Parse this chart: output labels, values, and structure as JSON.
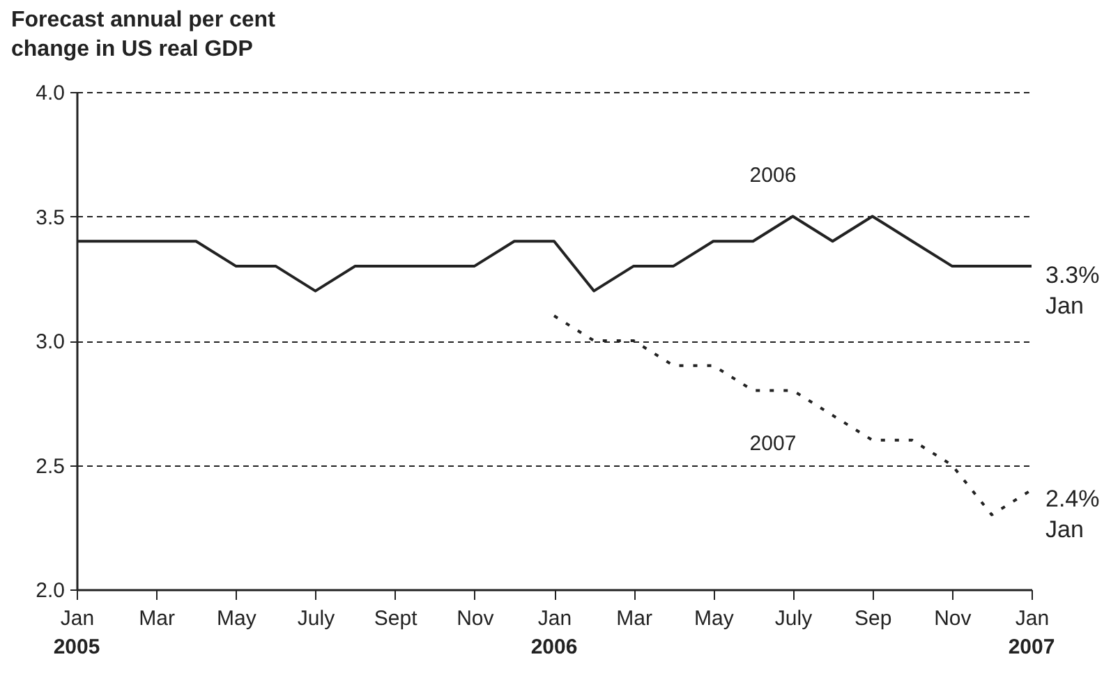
{
  "chart_data": {
    "type": "line",
    "title": "Forecast annual per cent change in US real GDP",
    "categories": [
      "Jan",
      null,
      "Mar",
      null,
      "May",
      null,
      "July",
      null,
      "Sept",
      null,
      "Nov",
      null,
      "Jan",
      null,
      "Mar",
      null,
      "May",
      null,
      "July",
      null,
      "Sep",
      null,
      "Nov",
      null,
      "Jan"
    ],
    "series": [
      {
        "name": "2006",
        "color": "#222222",
        "line_style": "solid",
        "values": [
          3.4,
          3.4,
          3.4,
          3.4,
          3.3,
          3.3,
          3.2,
          3.3,
          3.3,
          3.3,
          3.3,
          3.4,
          3.4,
          3.2,
          3.3,
          3.3,
          3.4,
          3.4,
          3.5,
          3.4,
          3.5,
          3.4,
          3.3,
          3.3,
          3.3
        ]
      },
      {
        "name": "2007",
        "color": "#222222",
        "line_style": "dotted",
        "values": [
          null,
          null,
          null,
          null,
          null,
          null,
          null,
          null,
          null,
          null,
          null,
          null,
          3.1,
          3.0,
          3.0,
          2.9,
          2.9,
          2.8,
          2.8,
          2.7,
          2.6,
          2.6,
          2.5,
          2.3,
          2.4
        ]
      }
    ],
    "ylim": [
      2.0,
      4.0
    ],
    "yticks": [
      {
        "value": 2,
        "label": "2.0"
      },
      2.5,
      {
        "value": 3,
        "label": "3.0"
      },
      3.5,
      {
        "value": 4,
        "label": "4.0"
      }
    ],
    "grid": "y",
    "annotations": [
      "2005",
      "2006",
      "2007",
      "3.3%\nJan",
      "2.4%\nJan"
    ]
  }
}
